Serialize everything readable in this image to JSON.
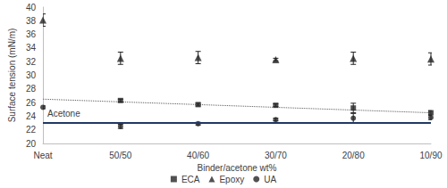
{
  "chart_data": {
    "type": "scatter",
    "x_label": "Binder/acetone wt%",
    "y_label": "Surface tension (mN/m)",
    "categories": [
      "Neat",
      "50/50",
      "40/60",
      "30/70",
      "20/80",
      "10/90"
    ],
    "series": [
      {
        "name": "ECA",
        "color": "#262626",
        "marker": "square",
        "values": [
          null,
          26.3,
          25.7,
          25.6,
          25.2,
          24.5
        ],
        "errors": [
          null,
          0.2,
          0.2,
          0.2,
          0.7,
          0.3
        ]
      },
      {
        "name": "Epoxy",
        "color": "#262626",
        "marker": "triangle",
        "values": [
          38.1,
          32.5,
          32.6,
          32.3,
          32.5,
          32.4
        ],
        "errors": [
          0.9,
          0.9,
          0.9,
          0.2,
          0.9,
          0.9
        ]
      },
      {
        "name": "UA",
        "color": "#262626",
        "marker": "circle",
        "values": [
          25.3,
          22.5,
          22.9,
          23.5,
          23.7,
          23.8
        ],
        "errors": [
          0.2,
          0.3,
          0.2,
          0.2,
          0.7,
          0.3
        ]
      }
    ],
    "trend_line": {
      "series": "ECA",
      "color": "#595959",
      "line_style": "dotted",
      "values": [
        26.5,
        26.1,
        25.7,
        25.3,
        24.9,
        24.5
      ]
    },
    "reference_line": {
      "label": "Acetone",
      "value": 23.1,
      "color": "#1f3864"
    },
    "ylim": [
      20,
      40
    ],
    "yticks": [
      20,
      22,
      24,
      26,
      28,
      30,
      32,
      34,
      36,
      38,
      40
    ],
    "grid": false,
    "legend": "bottom"
  }
}
